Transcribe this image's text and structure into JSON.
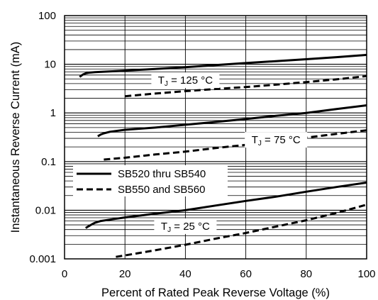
{
  "chart_data": {
    "type": "line",
    "title": "",
    "xlabel": "Percent of Rated Peak Reverse Voltage (%)",
    "ylabel": "Instantaneous Reverse Current (mA)",
    "xlim": [
      0,
      100
    ],
    "ylim": [
      0.001,
      100
    ],
    "yscale": "log",
    "grid": true,
    "legend_position": "left-middle",
    "x_ticks": [
      "0",
      "20",
      "40",
      "60",
      "80",
      "100"
    ],
    "y_ticks": [
      "0.001",
      "0.01",
      "0.1",
      "1",
      "10",
      "100"
    ],
    "legend": [
      {
        "label": "SB520 thru SB540",
        "style": "solid"
      },
      {
        "label": "SB550 and SB560",
        "style": "dashed"
      }
    ],
    "annotations": [
      {
        "main": "T",
        "sub": "J",
        "rest": " = 125 °C",
        "x": 40,
        "y": 4.7
      },
      {
        "main": "T",
        "sub": "J",
        "rest": " = 75 °C",
        "x": 70,
        "y": 0.28
      },
      {
        "main": "T",
        "sub": "J",
        "rest": " = 25 °C",
        "x": 40,
        "y": 0.0047
      }
    ],
    "series": [
      {
        "style": "solid",
        "x": [
          5,
          6,
          7,
          8,
          10,
          20,
          30,
          40,
          50,
          60,
          70,
          80,
          90,
          100
        ],
        "y": [
          5.5,
          6.1,
          6.5,
          6.7,
          6.9,
          7.4,
          8.0,
          8.7,
          9.6,
          10.6,
          11.6,
          12.7,
          14.0,
          15.6
        ]
      },
      {
        "style": "dashed",
        "x": [
          20,
          30,
          40,
          50,
          60,
          70,
          80,
          90,
          100
        ],
        "y": [
          2.2,
          2.5,
          2.8,
          3.1,
          3.4,
          3.8,
          4.3,
          4.9,
          5.7
        ]
      },
      {
        "style": "solid",
        "x": [
          11,
          12,
          13,
          15,
          20,
          30,
          40,
          50,
          60,
          70,
          80,
          90,
          100
        ],
        "y": [
          0.33,
          0.36,
          0.38,
          0.41,
          0.45,
          0.5,
          0.57,
          0.65,
          0.75,
          0.87,
          1.0,
          1.2,
          1.43
        ]
      },
      {
        "style": "dashed",
        "x": [
          13,
          20,
          30,
          40,
          50,
          60,
          70,
          80,
          90,
          100
        ],
        "y": [
          0.11,
          0.12,
          0.14,
          0.16,
          0.19,
          0.22,
          0.26,
          0.31,
          0.37,
          0.44
        ]
      },
      {
        "style": "solid",
        "x": [
          7,
          8,
          9,
          10,
          12,
          15,
          20,
          30,
          40,
          50,
          60,
          70,
          80,
          90,
          100
        ],
        "y": [
          0.0043,
          0.0047,
          0.0051,
          0.0055,
          0.006,
          0.0064,
          0.0071,
          0.0085,
          0.01,
          0.0125,
          0.0155,
          0.019,
          0.024,
          0.03,
          0.037
        ]
      },
      {
        "style": "dashed",
        "x": [
          17,
          20,
          30,
          40,
          50,
          60,
          70,
          80,
          90,
          100
        ],
        "y": [
          0.0011,
          0.00118,
          0.0015,
          0.00195,
          0.0026,
          0.0034,
          0.0046,
          0.0062,
          0.0088,
          0.013
        ]
      }
    ]
  }
}
